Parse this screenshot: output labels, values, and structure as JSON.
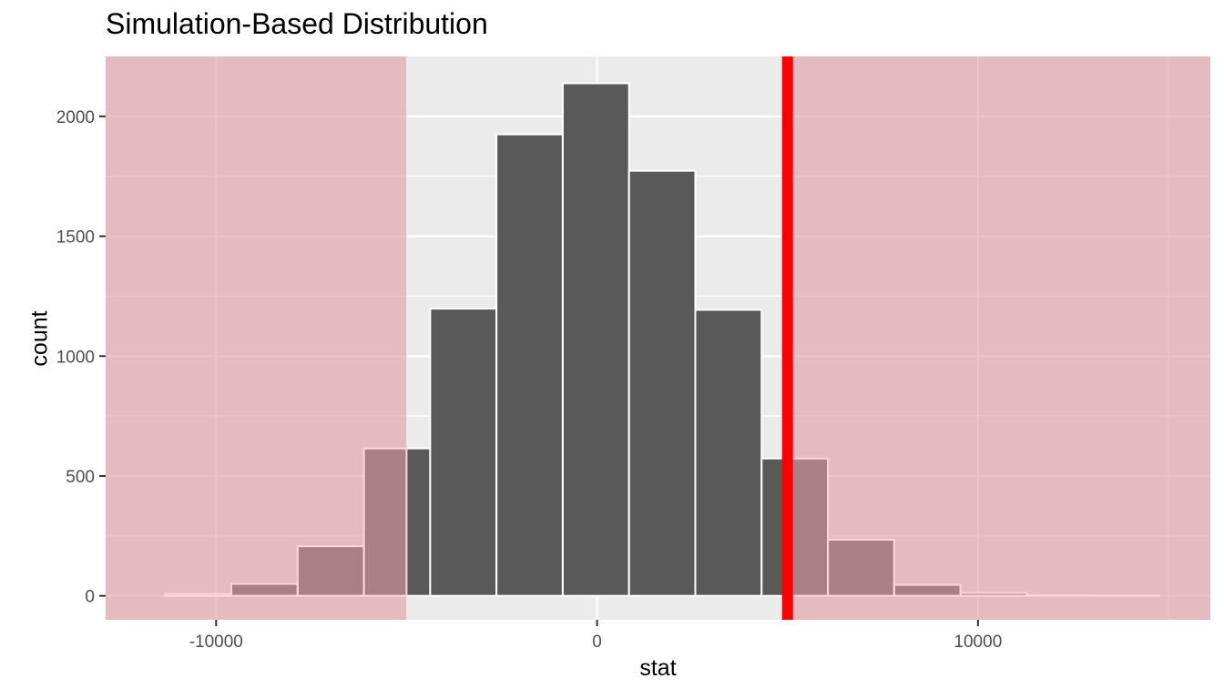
{
  "chart_data": {
    "type": "bar",
    "title": "Simulation-Based Distribution",
    "xlabel": "stat",
    "ylabel": "count",
    "xlim": [
      -12900,
      16100
    ],
    "ylim": [
      -100,
      2250
    ],
    "x_ticks": [
      -10000,
      0,
      10000
    ],
    "x_tick_labels": [
      "-10000",
      "0",
      "10000"
    ],
    "x_minor_ticks": [
      -5000,
      5000,
      15000
    ],
    "y_ticks": [
      0,
      500,
      1000,
      1500,
      2000
    ],
    "y_tick_labels": [
      "0",
      "500",
      "1000",
      "1500",
      "2000"
    ],
    "y_minor_ticks": [
      250,
      750,
      1250,
      1750
    ],
    "grid": true,
    "bins": [
      {
        "x0": -11340,
        "x1": -9600,
        "count": 8
      },
      {
        "x0": -9600,
        "x1": -7860,
        "count": 50
      },
      {
        "x0": -7860,
        "x1": -6120,
        "count": 207
      },
      {
        "x0": -6120,
        "x1": -4380,
        "count": 615
      },
      {
        "x0": -4380,
        "x1": -2640,
        "count": 1198
      },
      {
        "x0": -2640,
        "x1": -900,
        "count": 1925
      },
      {
        "x0": -900,
        "x1": 840,
        "count": 2138
      },
      {
        "x0": 840,
        "x1": 2580,
        "count": 1773
      },
      {
        "x0": 2580,
        "x1": 4320,
        "count": 1193
      },
      {
        "x0": 4320,
        "x1": 6060,
        "count": 573
      },
      {
        "x0": 6060,
        "x1": 7800,
        "count": 234
      },
      {
        "x0": 7800,
        "x1": 9540,
        "count": 46
      },
      {
        "x0": 9540,
        "x1": 11280,
        "count": 12
      },
      {
        "x0": 11280,
        "x1": 13020,
        "count": 2
      },
      {
        "x0": 13020,
        "x1": 14760,
        "count": 1
      }
    ],
    "observed_stat": 5000,
    "shaded_regions": [
      [
        -12900,
        -5000
      ],
      [
        5000,
        16100
      ]
    ],
    "colors": {
      "panel_background": "#ebebeb",
      "grid": "#ffffff",
      "bar_fill": "#595959",
      "bar_outline": "#ffffff",
      "shade_fill": "#e09ba5",
      "shade_opacity": 0.6,
      "shade_bar_outline": "#ffd3da",
      "observed_line": "#ff0000",
      "tick_label": "#4d4d4d",
      "tick_mark": "#333333"
    }
  }
}
